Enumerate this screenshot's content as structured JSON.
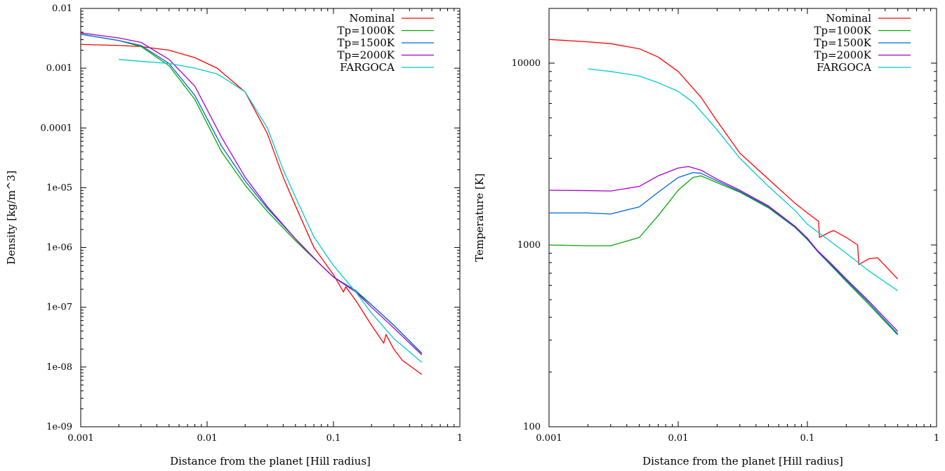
{
  "chart_data": [
    {
      "type": "line",
      "xlabel": "Distance from the planet [Hill radius]",
      "ylabel": "Density [kg/m^3]",
      "xscale": "log",
      "yscale": "log",
      "xlim": [
        0.001,
        1
      ],
      "ylim": [
        1e-09,
        0.01
      ],
      "xticks": [
        0.001,
        0.01,
        0.1,
        1
      ],
      "xtick_labels": [
        "0.001",
        "0.01",
        "0.1",
        "1"
      ],
      "yticks": [
        1e-09,
        1e-08,
        1e-07,
        1e-06,
        1e-05,
        0.0001,
        0.001,
        0.01
      ],
      "ytick_labels": [
        "1e-09",
        "1e-08",
        "1e-07",
        "1e-06",
        "1e-05",
        "0.0001",
        "0.001",
        "0.01"
      ],
      "grid": false,
      "legend_position": "top-right",
      "series": [
        {
          "name": "Nominal",
          "color": "#ff0000",
          "points": [
            [
              0.001,
              0.0025
            ],
            [
              0.002,
              0.0024
            ],
            [
              0.003,
              0.0023
            ],
            [
              0.005,
              0.002
            ],
            [
              0.008,
              0.0015
            ],
            [
              0.012,
              0.001
            ],
            [
              0.02,
              0.0004
            ],
            [
              0.03,
              8e-05
            ],
            [
              0.04,
              1.5e-05
            ],
            [
              0.05,
              5e-06
            ],
            [
              0.07,
              1e-06
            ],
            [
              0.1,
              3.5e-07
            ],
            [
              0.12,
              1.8e-07
            ],
            [
              0.125,
              2.2e-07
            ],
            [
              0.15,
              1.3e-07
            ],
            [
              0.2,
              5e-08
            ],
            [
              0.25,
              2.5e-08
            ],
            [
              0.26,
              3.5e-08
            ],
            [
              0.3,
              2e-08
            ],
            [
              0.35,
              1.3e-08
            ],
            [
              0.5,
              7.5e-09
            ]
          ]
        },
        {
          "name": "Tp=1000K",
          "color": "#00aa00",
          "points": [
            [
              0.001,
              0.0037
            ],
            [
              0.002,
              0.0029
            ],
            [
              0.003,
              0.0023
            ],
            [
              0.005,
              0.0011
            ],
            [
              0.008,
              0.0003
            ],
            [
              0.013,
              4e-05
            ],
            [
              0.02,
              1.1e-05
            ],
            [
              0.03,
              4e-06
            ],
            [
              0.05,
              1.3e-06
            ],
            [
              0.08,
              5e-07
            ],
            [
              0.1,
              3.2e-07
            ],
            [
              0.15,
              1.8e-07
            ],
            [
              0.2,
              1.1e-07
            ],
            [
              0.3,
              5e-08
            ],
            [
              0.5,
              1.7e-08
            ]
          ]
        },
        {
          "name": "Tp=1500K",
          "color": "#0066dd",
          "points": [
            [
              0.001,
              0.0037
            ],
            [
              0.002,
              0.0029
            ],
            [
              0.003,
              0.0024
            ],
            [
              0.005,
              0.0012
            ],
            [
              0.008,
              0.00035
            ],
            [
              0.013,
              5e-05
            ],
            [
              0.02,
              1.3e-05
            ],
            [
              0.03,
              4.5e-06
            ],
            [
              0.05,
              1.4e-06
            ],
            [
              0.08,
              5e-07
            ],
            [
              0.1,
              3.2e-07
            ],
            [
              0.15,
              1.9e-07
            ],
            [
              0.2,
              1.1e-07
            ],
            [
              0.3,
              5e-08
            ],
            [
              0.5,
              1.7e-08
            ]
          ]
        },
        {
          "name": "Tp=2000K",
          "color": "#aa00cc",
          "points": [
            [
              0.001,
              0.0039
            ],
            [
              0.002,
              0.0032
            ],
            [
              0.003,
              0.0027
            ],
            [
              0.005,
              0.0014
            ],
            [
              0.008,
              0.0005
            ],
            [
              0.013,
              7e-05
            ],
            [
              0.02,
              1.5e-05
            ],
            [
              0.03,
              4.8e-06
            ],
            [
              0.05,
              1.4e-06
            ],
            [
              0.08,
              5e-07
            ],
            [
              0.1,
              3.2e-07
            ],
            [
              0.15,
              1.8e-07
            ],
            [
              0.2,
              1e-07
            ],
            [
              0.3,
              4.5e-08
            ],
            [
              0.5,
              1.6e-08
            ]
          ]
        },
        {
          "name": "FARGOCA",
          "color": "#00cccc",
          "points": [
            [
              0.002,
              0.0014
            ],
            [
              0.003,
              0.0013
            ],
            [
              0.005,
              0.0012
            ],
            [
              0.008,
              0.001
            ],
            [
              0.012,
              0.0008
            ],
            [
              0.015,
              0.0006
            ],
            [
              0.02,
              0.0004
            ],
            [
              0.03,
              0.0001
            ],
            [
              0.04,
              2e-05
            ],
            [
              0.05,
              7e-06
            ],
            [
              0.07,
              1.5e-06
            ],
            [
              0.1,
              5e-07
            ],
            [
              0.15,
              1.8e-07
            ],
            [
              0.2,
              8e-08
            ],
            [
              0.3,
              3e-08
            ],
            [
              0.5,
              1.2e-08
            ]
          ]
        }
      ]
    },
    {
      "type": "line",
      "xlabel": "Distance from the planet [Hill radius]",
      "ylabel": "Temperature [K]",
      "xscale": "log",
      "yscale": "log",
      "xlim": [
        0.001,
        1
      ],
      "ylim": [
        100,
        20000
      ],
      "xticks": [
        0.001,
        0.01,
        0.1,
        1
      ],
      "xtick_labels": [
        "0.001",
        "0.01",
        "0.1",
        "1"
      ],
      "yticks": [
        100,
        1000,
        10000
      ],
      "ytick_labels": [
        "100",
        "1000",
        "10000"
      ],
      "grid": false,
      "legend_position": "top-right",
      "series": [
        {
          "name": "Nominal",
          "color": "#ff0000",
          "points": [
            [
              0.001,
              13500
            ],
            [
              0.002,
              13100
            ],
            [
              0.003,
              12800
            ],
            [
              0.005,
              12000
            ],
            [
              0.007,
              10800
            ],
            [
              0.01,
              9000
            ],
            [
              0.015,
              6500
            ],
            [
              0.02,
              4800
            ],
            [
              0.03,
              3200
            ],
            [
              0.05,
              2300
            ],
            [
              0.08,
              1700
            ],
            [
              0.1,
              1500
            ],
            [
              0.122,
              1350
            ],
            [
              0.124,
              1100
            ],
            [
              0.15,
              1180
            ],
            [
              0.16,
              1200
            ],
            [
              0.2,
              1100
            ],
            [
              0.245,
              1000
            ],
            [
              0.25,
              780
            ],
            [
              0.3,
              840
            ],
            [
              0.35,
              850
            ],
            [
              0.5,
              650
            ]
          ]
        },
        {
          "name": "Tp=1000K",
          "color": "#00aa00",
          "points": [
            [
              0.001,
              1000
            ],
            [
              0.002,
              990
            ],
            [
              0.003,
              990
            ],
            [
              0.005,
              1100
            ],
            [
              0.007,
              1450
            ],
            [
              0.01,
              2000
            ],
            [
              0.013,
              2350
            ],
            [
              0.015,
              2400
            ],
            [
              0.02,
              2200
            ],
            [
              0.03,
              1950
            ],
            [
              0.05,
              1600
            ],
            [
              0.08,
              1250
            ],
            [
              0.1,
              1070
            ],
            [
              0.12,
              920
            ],
            [
              0.15,
              780
            ],
            [
              0.2,
              630
            ],
            [
              0.3,
              470
            ],
            [
              0.5,
              320
            ]
          ]
        },
        {
          "name": "Tp=1500K",
          "color": "#0066dd",
          "points": [
            [
              0.001,
              1500
            ],
            [
              0.002,
              1500
            ],
            [
              0.003,
              1480
            ],
            [
              0.005,
              1620
            ],
            [
              0.007,
              1950
            ],
            [
              0.01,
              2350
            ],
            [
              0.013,
              2500
            ],
            [
              0.015,
              2480
            ],
            [
              0.02,
              2250
            ],
            [
              0.03,
              1970
            ],
            [
              0.05,
              1620
            ],
            [
              0.08,
              1260
            ],
            [
              0.1,
              1080
            ],
            [
              0.12,
              920
            ],
            [
              0.15,
              790
            ],
            [
              0.2,
              640
            ],
            [
              0.3,
              480
            ],
            [
              0.5,
              325
            ]
          ]
        },
        {
          "name": "Tp=2000K",
          "color": "#aa00cc",
          "points": [
            [
              0.001,
              2000
            ],
            [
              0.002,
              1990
            ],
            [
              0.003,
              1980
            ],
            [
              0.005,
              2100
            ],
            [
              0.007,
              2400
            ],
            [
              0.01,
              2650
            ],
            [
              0.012,
              2700
            ],
            [
              0.015,
              2580
            ],
            [
              0.02,
              2300
            ],
            [
              0.03,
              2000
            ],
            [
              0.05,
              1640
            ],
            [
              0.08,
              1270
            ],
            [
              0.1,
              1090
            ],
            [
              0.12,
              930
            ],
            [
              0.15,
              800
            ],
            [
              0.2,
              650
            ],
            [
              0.3,
              490
            ],
            [
              0.5,
              335
            ]
          ]
        },
        {
          "name": "FARGOCA",
          "color": "#00cccc",
          "points": [
            [
              0.002,
              9300
            ],
            [
              0.003,
              9000
            ],
            [
              0.005,
              8500
            ],
            [
              0.007,
              7800
            ],
            [
              0.01,
              7000
            ],
            [
              0.013,
              6100
            ],
            [
              0.02,
              4300
            ],
            [
              0.03,
              3000
            ],
            [
              0.05,
              2100
            ],
            [
              0.08,
              1550
            ],
            [
              0.1,
              1300
            ],
            [
              0.15,
              1050
            ],
            [
              0.2,
              900
            ],
            [
              0.3,
              720
            ],
            [
              0.5,
              560
            ]
          ]
        }
      ]
    }
  ]
}
